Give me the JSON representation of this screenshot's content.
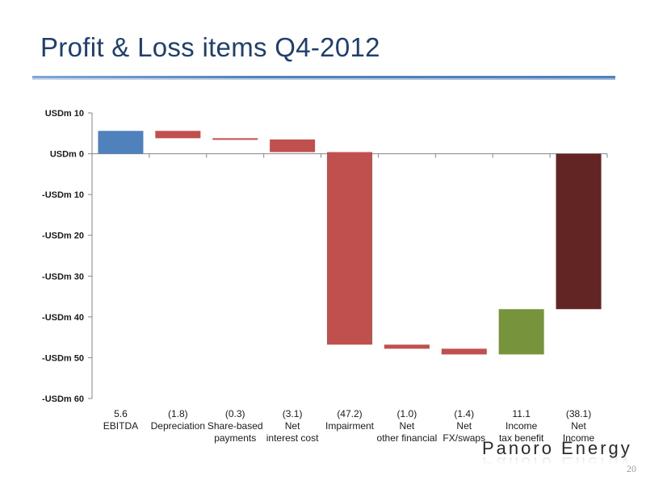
{
  "slide": {
    "title": "Profit & Loss items Q4-2012",
    "page_number": "20",
    "logo_text": "Panoro Energy"
  },
  "chart_data": {
    "type": "bar",
    "subtype": "waterfall",
    "ylim": [
      -60,
      10
    ],
    "y_ticks": [
      10,
      0,
      -10,
      -20,
      -30,
      -40,
      -50,
      -60
    ],
    "y_tick_labels": [
      "USDm 10",
      "USDm 0",
      "-USDm 10",
      "-USDm 20",
      "-USDm 30",
      "-USDm 40",
      "-USDm 50",
      "-USDm 60"
    ],
    "categories": [
      {
        "value_label": "5.6",
        "name_lines": [
          "EBITDA"
        ]
      },
      {
        "value_label": "(1.8)",
        "name_lines": [
          "Depreciation"
        ]
      },
      {
        "value_label": "(0.3)",
        "name_lines": [
          "Share-based",
          "payments"
        ]
      },
      {
        "value_label": "(3.1)",
        "name_lines": [
          "Net",
          "interest cost"
        ]
      },
      {
        "value_label": "(47.2)",
        "name_lines": [
          "Impairment"
        ]
      },
      {
        "value_label": "(1.0)",
        "name_lines": [
          "Net",
          "other financial"
        ]
      },
      {
        "value_label": "(1.4)",
        "name_lines": [
          "Net",
          "FX/swaps"
        ]
      },
      {
        "value_label": "11.1",
        "name_lines": [
          "Income",
          "tax benefit"
        ]
      },
      {
        "value_label": "(38.1)",
        "name_lines": [
          "Net",
          "Income"
        ]
      }
    ],
    "bars": [
      {
        "start": 0,
        "end": 5.6,
        "color": "#4f81bd"
      },
      {
        "start": 5.6,
        "end": 3.8,
        "color": "#c0504d"
      },
      {
        "start": 3.8,
        "end": 3.5,
        "color": "#c0504d"
      },
      {
        "start": 3.5,
        "end": 0.4,
        "color": "#c0504d"
      },
      {
        "start": 0.4,
        "end": -46.8,
        "color": "#c0504d"
      },
      {
        "start": -46.8,
        "end": -47.8,
        "color": "#c0504d"
      },
      {
        "start": -47.8,
        "end": -49.2,
        "color": "#c0504d"
      },
      {
        "start": -49.2,
        "end": -38.1,
        "color": "#77933c"
      },
      {
        "start": 0,
        "end": -38.1,
        "color": "#632523"
      }
    ],
    "grid": false,
    "legend": "none"
  }
}
